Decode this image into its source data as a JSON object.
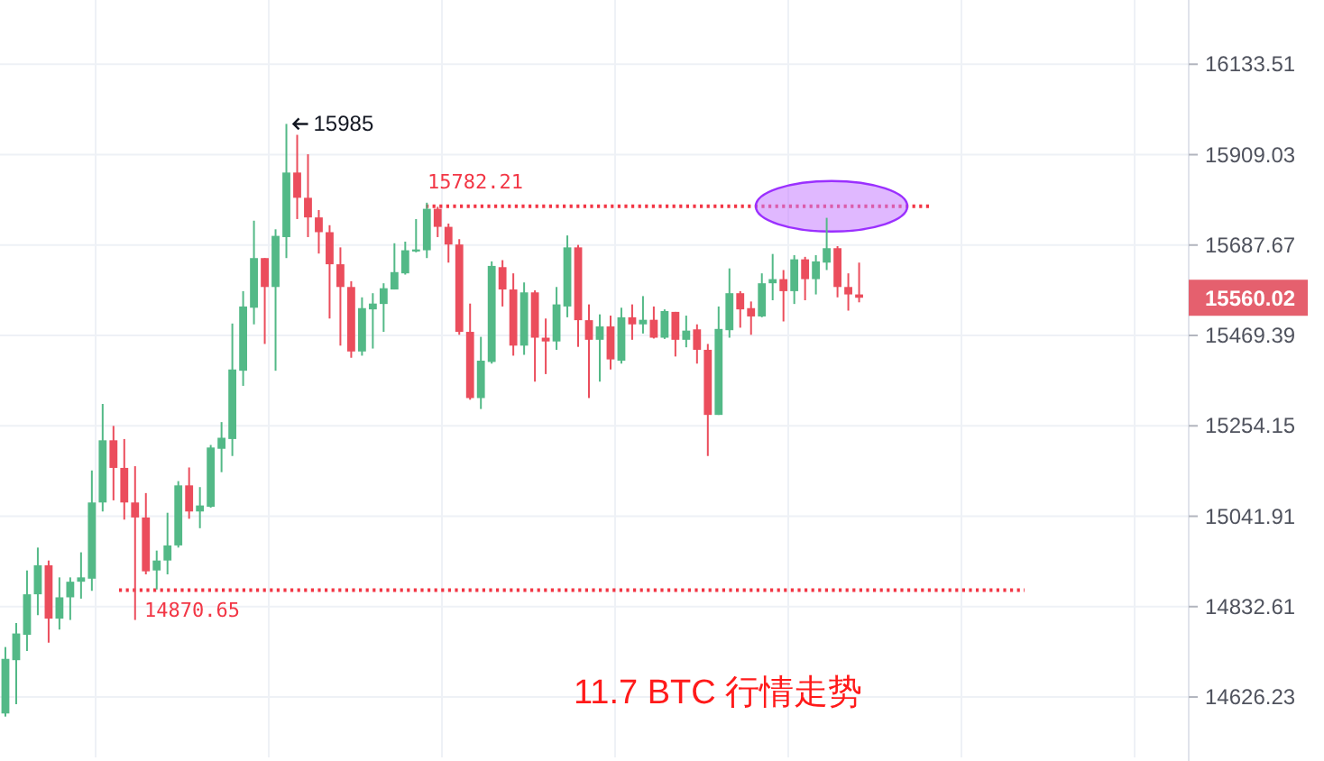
{
  "chart_data": {
    "type": "candlestick",
    "title": "11.7 BTC 行情走势",
    "categories": [
      null,
      null,
      null,
      null,
      null,
      null,
      null,
      null,
      null,
      null,
      null,
      null,
      null,
      null,
      null,
      null,
      null,
      null,
      null,
      null,
      null,
      null,
      null,
      null,
      null,
      null,
      null,
      null,
      null,
      null,
      null,
      null,
      null,
      null,
      null,
      null,
      null,
      null,
      null,
      null,
      null,
      null,
      null,
      null,
      null,
      null,
      null,
      null,
      null,
      null,
      null,
      null,
      null,
      null,
      null,
      null,
      null,
      null,
      null,
      null,
      null,
      null,
      null,
      null,
      null,
      null,
      null,
      null,
      null,
      null,
      null,
      null,
      null,
      null,
      null,
      null,
      null,
      null,
      null,
      null,
      null,
      null,
      null,
      null,
      null,
      null,
      null,
      null,
      null,
      null,
      null,
      null,
      null,
      null,
      null,
      null,
      null,
      null,
      null,
      null,
      null,
      null,
      null,
      null,
      null,
      null,
      null,
      null,
      null,
      null
    ],
    "ohlc": [
      [
        14589,
        14740,
        14582,
        14713
      ],
      [
        14710,
        14795,
        14610,
        14771
      ],
      [
        14768,
        14916,
        14731,
        14861
      ],
      [
        14861,
        14969,
        14813,
        14928
      ],
      [
        14928,
        14939,
        14750,
        14805
      ],
      [
        14805,
        14900,
        14780,
        14854
      ],
      [
        14854,
        14900,
        14802,
        14890
      ],
      [
        14890,
        14958,
        14851,
        14900
      ],
      [
        14897,
        15149,
        14869,
        15074
      ],
      [
        15074,
        15306,
        15053,
        15220
      ],
      [
        15220,
        15254,
        15079,
        15155
      ],
      [
        15155,
        15223,
        15034,
        15074
      ],
      [
        15074,
        15159,
        14802,
        15039
      ],
      [
        15039,
        15096,
        14907,
        14914
      ],
      [
        14916,
        14962,
        14872,
        14939
      ],
      [
        14939,
        15050,
        14907,
        14974
      ],
      [
        14974,
        15124,
        14969,
        15114
      ],
      [
        15114,
        15156,
        15036,
        15053
      ],
      [
        15053,
        15110,
        15014,
        15067
      ],
      [
        15064,
        15209,
        15062,
        15203
      ],
      [
        15200,
        15263,
        15145,
        15226
      ],
      [
        15223,
        15498,
        15183,
        15388
      ],
      [
        15385,
        15576,
        15349,
        15539
      ],
      [
        15536,
        15747,
        15496,
        15656
      ],
      [
        15656,
        15656,
        15449,
        15586
      ],
      [
        15586,
        15726,
        15385,
        15710
      ],
      [
        15707,
        15985,
        15656,
        15865
      ],
      [
        15865,
        15958,
        15751,
        15803
      ],
      [
        15803,
        15910,
        15707,
        15755
      ],
      [
        15755,
        15773,
        15667,
        15719
      ],
      [
        15719,
        15736,
        15510,
        15641
      ],
      [
        15641,
        15682,
        15445,
        15586
      ],
      [
        15586,
        15600,
        15416,
        15431
      ],
      [
        15431,
        15561,
        15421,
        15535
      ],
      [
        15532,
        15571,
        15438,
        15546
      ],
      [
        15545,
        15595,
        15478,
        15583
      ],
      [
        15580,
        15692,
        15580,
        15622
      ],
      [
        15619,
        15696,
        15616,
        15675
      ],
      [
        15672,
        15751,
        15670,
        15677
      ],
      [
        15675,
        15791,
        15656,
        15776
      ],
      [
        15776,
        15781,
        15707,
        15732
      ],
      [
        15732,
        15740,
        15645,
        15689
      ],
      [
        15689,
        15702,
        15471,
        15478
      ],
      [
        15478,
        15546,
        15316,
        15320
      ],
      [
        15320,
        15466,
        15294,
        15409
      ],
      [
        15406,
        15648,
        15402,
        15637
      ],
      [
        15634,
        15651,
        15539,
        15580
      ],
      [
        15580,
        15619,
        15421,
        15445
      ],
      [
        15445,
        15597,
        15423,
        15573
      ],
      [
        15573,
        15578,
        15359,
        15464
      ],
      [
        15464,
        15510,
        15377,
        15455
      ],
      [
        15455,
        15586,
        15435,
        15544
      ],
      [
        15539,
        15711,
        15513,
        15682
      ],
      [
        15682,
        15688,
        15442,
        15506
      ],
      [
        15506,
        15544,
        15320,
        15459
      ],
      [
        15459,
        15520,
        15359,
        15491
      ],
      [
        15491,
        15517,
        15388,
        15412
      ],
      [
        15409,
        15536,
        15402,
        15513
      ],
      [
        15513,
        15544,
        15459,
        15496
      ],
      [
        15496,
        15564,
        15474,
        15507
      ],
      [
        15507,
        15539,
        15462,
        15464
      ],
      [
        15464,
        15532,
        15461,
        15528
      ],
      [
        15526,
        15526,
        15419,
        15459
      ],
      [
        15459,
        15517,
        15441,
        15481
      ],
      [
        15484,
        15496,
        15402,
        15435
      ],
      [
        15435,
        15449,
        15183,
        15280
      ],
      [
        15280,
        15539,
        15280,
        15485
      ],
      [
        15482,
        15631,
        15464,
        15571
      ],
      [
        15571,
        15576,
        15488,
        15532
      ],
      [
        15535,
        15551,
        15471,
        15515
      ],
      [
        15515,
        15619,
        15513,
        15595
      ],
      [
        15595,
        15666,
        15554,
        15605
      ],
      [
        15605,
        15627,
        15503,
        15576
      ],
      [
        15576,
        15663,
        15545,
        15653
      ],
      [
        15653,
        15659,
        15554,
        15605
      ],
      [
        15605,
        15663,
        15568,
        15648
      ],
      [
        15645,
        15754,
        15627,
        15680
      ],
      [
        15680,
        15685,
        15561,
        15586
      ],
      [
        15586,
        15619,
        15529,
        15568
      ],
      [
        15568,
        15645,
        15549,
        15560.02
      ],
      null,
      null,
      null,
      null,
      null,
      null,
      null,
      null,
      null,
      null,
      null,
      null,
      null,
      null,
      null,
      null,
      null,
      null,
      null,
      null,
      null,
      null,
      null,
      null,
      null,
      null,
      null,
      null,
      null,
      null
    ],
    "colors": [
      "#53b987",
      "#53b987",
      "#53b987",
      "#53b987",
      "#eb4d5c",
      "#53b987",
      "#53b987",
      "#53b987",
      "#53b987",
      "#53b987",
      "#eb4d5c",
      "#eb4d5c",
      "#eb4d5c",
      "#eb4d5c",
      "#53b987",
      "#53b987",
      "#53b987",
      "#eb4d5c",
      "#53b987",
      "#53b987",
      "#53b987",
      "#53b987",
      "#53b987",
      "#53b987",
      "#eb4d5c",
      "#53b987",
      "#53b987",
      "#eb4d5c",
      "#eb4d5c",
      "#eb4d5c",
      "#eb4d5c",
      "#eb4d5c",
      "#eb4d5c",
      "#53b987",
      "#53b987",
      "#53b987",
      "#53b987",
      "#53b987",
      "#53b987",
      "#53b987",
      "#eb4d5c",
      "#eb4d5c",
      "#eb4d5c",
      "#eb4d5c",
      "#53b987",
      "#53b987",
      "#eb4d5c",
      "#eb4d5c",
      "#53b987",
      "#eb4d5c",
      "#eb4d5c",
      "#53b987",
      "#53b987",
      "#eb4d5c",
      "#eb4d5c",
      "#53b987",
      "#eb4d5c",
      "#53b987",
      "#eb4d5c",
      "#53b987",
      "#eb4d5c",
      "#53b987",
      "#eb4d5c",
      "#53b987",
      "#eb4d5c",
      "#eb4d5c",
      "#53b987",
      "#53b987",
      "#eb4d5c",
      "#eb4d5c",
      "#53b987",
      "#53b987",
      "#eb4d5c",
      "#53b987",
      "#eb4d5c",
      "#53b987",
      "#53b987",
      "#eb4d5c",
      "#eb4d5c",
      "#eb4d5c",
      null,
      null,
      null,
      null,
      null,
      null,
      null,
      null,
      null,
      null,
      null,
      null,
      null,
      null,
      null,
      null,
      null,
      null,
      null,
      null,
      null,
      null,
      null,
      null,
      null,
      null,
      null,
      null,
      null,
      null
    ],
    "log": true,
    "ylim": [
      14490,
      16295
    ],
    "yticks": [
      14626.23,
      14832.61,
      15041.91,
      15254.15,
      15469.39,
      15687.67,
      15909.03,
      16133.51
    ],
    "grid": true,
    "ref_lines": [
      {
        "axis": "y",
        "value": 15782.21,
        "label": "15782.21",
        "color": "#f23645",
        "line_style": "dotted"
      },
      {
        "axis": "y",
        "value": 14870.65,
        "label": "14870.65",
        "color": "#f23645",
        "line_style": "dotted"
      }
    ],
    "annotations": [
      "15985",
      "15560.02"
    ]
  }
}
